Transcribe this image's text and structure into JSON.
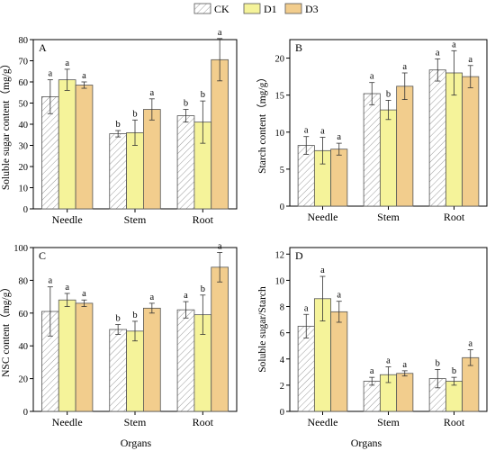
{
  "legend": {
    "position": "top-center",
    "items": [
      {
        "name": "CK",
        "fill": "#ffffff",
        "pattern": "hatch"
      },
      {
        "name": "D1",
        "fill": "#f5f39a",
        "pattern": "none"
      },
      {
        "name": "D3",
        "fill": "#f2cd8d",
        "pattern": "none"
      }
    ]
  },
  "colors": {
    "ck_hatch": "#9a9a9a",
    "d1": "#f5f39a",
    "d3": "#f2cd8d",
    "edge": "#555555",
    "axis": "#000000"
  },
  "xlabel": "Organs",
  "chart_data": [
    {
      "type": "bar",
      "panel": "A",
      "ylabel": "Soluble sugar content（mg/g）",
      "ylim": [
        0,
        80
      ],
      "yticks": [
        0,
        10,
        20,
        30,
        40,
        50,
        60,
        70,
        80
      ],
      "categories": [
        "Needle",
        "Stem",
        "Root"
      ],
      "series": [
        {
          "name": "CK",
          "values": [
            53,
            35.5,
            44
          ],
          "errors": [
            8,
            1.5,
            3
          ],
          "letters": [
            "a",
            "b",
            "b"
          ]
        },
        {
          "name": "D1",
          "values": [
            61,
            36,
            41
          ],
          "errors": [
            5,
            6,
            10
          ],
          "letters": [
            "a",
            "b",
            "b"
          ]
        },
        {
          "name": "D3",
          "values": [
            58.5,
            47,
            70.5
          ],
          "errors": [
            1.5,
            5,
            10
          ],
          "letters": [
            "a",
            "a",
            "a"
          ]
        }
      ]
    },
    {
      "type": "bar",
      "panel": "B",
      "ylabel": "Starch content（mg/g）",
      "ylim": [
        0,
        22.5
      ],
      "yticks": [
        0,
        5,
        10,
        15,
        20
      ],
      "categories": [
        "Needle",
        "Stem",
        "Root"
      ],
      "series": [
        {
          "name": "CK",
          "values": [
            8.2,
            15.2,
            18.4
          ],
          "errors": [
            1.2,
            1.5,
            1.5
          ],
          "letters": [
            "a",
            "a",
            "a"
          ]
        },
        {
          "name": "D1",
          "values": [
            7.5,
            13.0,
            18.0
          ],
          "errors": [
            1.8,
            1.3,
            3.0
          ],
          "letters": [
            "a",
            "b",
            "a"
          ]
        },
        {
          "name": "D3",
          "values": [
            7.7,
            16.2,
            17.5
          ],
          "errors": [
            0.8,
            1.8,
            1.5
          ],
          "letters": [
            "a",
            "a",
            "a"
          ]
        }
      ]
    },
    {
      "type": "bar",
      "panel": "C",
      "ylabel": "NSC content（mg/g）",
      "ylim": [
        0,
        100
      ],
      "yticks": [
        0,
        20,
        40,
        60,
        80,
        100
      ],
      "categories": [
        "Needle",
        "Stem",
        "Root"
      ],
      "series": [
        {
          "name": "CK",
          "values": [
            61,
            50,
            62
          ],
          "errors": [
            15,
            3,
            5
          ],
          "letters": [
            "a",
            "b",
            "a"
          ]
        },
        {
          "name": "D1",
          "values": [
            68,
            49,
            59
          ],
          "errors": [
            4,
            6,
            12
          ],
          "letters": [
            "a",
            "b",
            "b"
          ]
        },
        {
          "name": "D3",
          "values": [
            66,
            63,
            88
          ],
          "errors": [
            2,
            3,
            9
          ],
          "letters": [
            "a",
            "a",
            "a"
          ]
        }
      ]
    },
    {
      "type": "bar",
      "panel": "D",
      "ylabel": "Soluble sugar/Starch",
      "ylim": [
        0,
        12.5
      ],
      "yticks": [
        0,
        2,
        4,
        6,
        8,
        10,
        12
      ],
      "categories": [
        "Needle",
        "Stem",
        "Root"
      ],
      "series": [
        {
          "name": "CK",
          "values": [
            6.5,
            2.3,
            2.5
          ],
          "errors": [
            0.9,
            0.3,
            0.7
          ],
          "letters": [
            "a",
            "a",
            "b"
          ]
        },
        {
          "name": "D1",
          "values": [
            8.6,
            2.8,
            2.3
          ],
          "errors": [
            1.7,
            0.6,
            0.3
          ],
          "letters": [
            "a",
            "a",
            "b"
          ]
        },
        {
          "name": "D3",
          "values": [
            7.6,
            2.9,
            4.1
          ],
          "errors": [
            0.8,
            0.2,
            0.6
          ],
          "letters": [
            "a",
            "a",
            "a"
          ]
        }
      ]
    }
  ]
}
